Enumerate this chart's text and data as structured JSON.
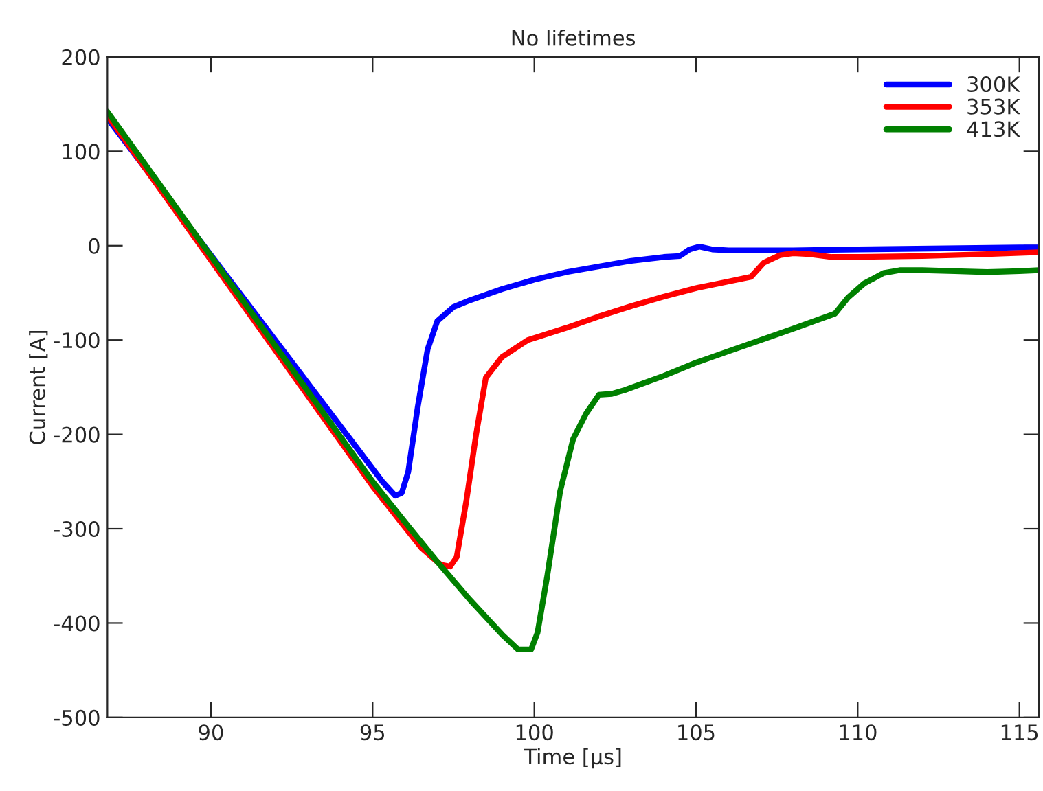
{
  "chart_data": {
    "type": "line",
    "title": "No lifetimes",
    "xlabel": "Time [μs]",
    "ylabel": "Current [A]",
    "xlim": [
      86.8,
      115.6
    ],
    "xticks": [
      90,
      95,
      100,
      105,
      110,
      115
    ],
    "ylim": [
      -500,
      200
    ],
    "yticks": [
      -500,
      -400,
      -300,
      -200,
      -100,
      0,
      100,
      200
    ],
    "grid": false,
    "legend": "top right",
    "line_style": "solid",
    "marker": "none",
    "series": [
      {
        "name": "300K",
        "color": "#0000ff",
        "x": [
          86.8,
          95.3,
          95.7,
          95.9,
          96.1,
          96.4,
          96.7,
          97.0,
          97.5,
          98,
          99,
          100,
          101,
          102,
          103,
          104,
          104.5,
          104.8,
          105.1,
          105.5,
          106,
          108,
          110,
          115,
          115.6
        ],
        "values": [
          135,
          -250,
          -265,
          -262,
          -240,
          -170,
          -110,
          -80,
          -65,
          -58,
          -46,
          -36,
          -28,
          -22,
          -16,
          -12,
          -11,
          -4,
          -1,
          -4,
          -5,
          -5,
          -4,
          -2,
          -2
        ]
      },
      {
        "name": "353K",
        "color": "#ff0000",
        "x": [
          86.8,
          95,
          96.5,
          97.1,
          97.4,
          97.6,
          97.9,
          98.2,
          98.5,
          99,
          99.8,
          101,
          102,
          103,
          104,
          105,
          106,
          106.7,
          107.1,
          107.6,
          108,
          108.5,
          109.2,
          110,
          112,
          114,
          115.6
        ],
        "values": [
          138,
          -255,
          -320,
          -338,
          -340,
          -330,
          -270,
          -200,
          -140,
          -118,
          -100,
          -87,
          -75,
          -64,
          -54,
          -45,
          -38,
          -33,
          -18,
          -10,
          -8,
          -9,
          -12,
          -12,
          -11,
          -9,
          -7
        ]
      },
      {
        "name": "413K",
        "color": "#008000",
        "x": [
          86.8,
          95,
          96,
          97,
          98,
          99,
          99.5,
          99.9,
          100.1,
          100.4,
          100.8,
          101.2,
          101.6,
          102,
          102.4,
          102.8,
          104,
          105,
          106,
          107,
          108,
          109.3,
          109.7,
          110.2,
          110.8,
          111.3,
          112,
          113,
          114,
          115,
          115.6
        ],
        "values": [
          142,
          -250,
          -293,
          -335,
          -375,
          -412,
          -428,
          -428,
          -410,
          -350,
          -260,
          -205,
          -178,
          -158,
          -157,
          -153,
          -138,
          -124,
          -112,
          -100,
          -88,
          -72,
          -55,
          -40,
          -29,
          -26,
          -26,
          -27,
          -28,
          -27,
          -26
        ]
      }
    ]
  }
}
